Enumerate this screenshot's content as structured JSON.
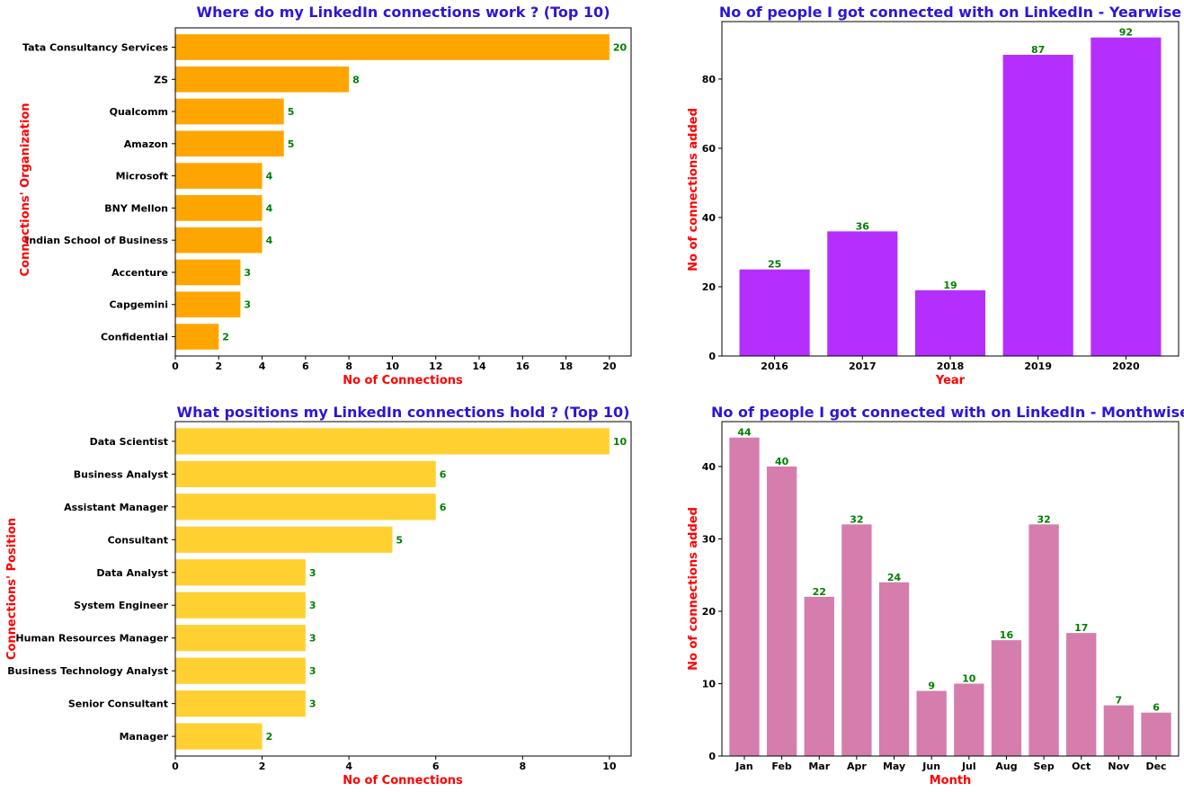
{
  "colors": {
    "title": "#2b16d8",
    "axis_label": "#ff0000",
    "data_label": "#008000"
  },
  "chart_data": [
    {
      "type": "bar",
      "orientation": "horizontal",
      "title": "Where do my LinkedIn connections work ? (Top 10)",
      "xlabel": "No of Connections",
      "ylabel": "Connections' Organization",
      "categories": [
        "Tata Consultancy Services",
        "ZS",
        "Qualcomm",
        "Amazon",
        "Microsoft",
        "BNY Mellon",
        "Indian School of Business",
        "Accenture",
        "Capgemini",
        "Confidential"
      ],
      "values": [
        20,
        8,
        5,
        5,
        4,
        4,
        4,
        3,
        3,
        2
      ],
      "xlim": [
        0,
        21
      ],
      "xticks": [
        "0",
        "2",
        "4",
        "6",
        "8",
        "10",
        "12",
        "14",
        "16",
        "18",
        "20"
      ],
      "bar_color": "#ffa500",
      "grid": false
    },
    {
      "type": "bar",
      "orientation": "vertical",
      "title": "No of people I got connected with on LinkedIn - Yearwise",
      "xlabel": "Year",
      "ylabel": "No of connections added",
      "categories": [
        "2016",
        "2017",
        "2018",
        "2019",
        "2020"
      ],
      "values": [
        25,
        36,
        19,
        87,
        92
      ],
      "ylim": [
        0,
        96.6
      ],
      "yticks": [
        "0",
        "20",
        "40",
        "60",
        "80"
      ],
      "bar_color": "#b42ffe",
      "grid": false
    },
    {
      "type": "bar",
      "orientation": "horizontal",
      "title": "What positions my LinkedIn connections hold ? (Top 10)",
      "xlabel": "No of Connections",
      "ylabel": "Connections' Position",
      "categories": [
        "Data Scientist",
        "Business Analyst",
        "Assistant Manager",
        "Consultant",
        "Data Analyst",
        "System Engineer",
        "Human Resources Manager",
        "Business Technology Analyst",
        "Senior Consultant",
        "Manager"
      ],
      "values": [
        10,
        6,
        6,
        5,
        3,
        3,
        3,
        3,
        3,
        2
      ],
      "xlim": [
        0,
        10.5
      ],
      "xticks": [
        "0",
        "2",
        "4",
        "6",
        "8",
        "10"
      ],
      "bar_color": "#ffd030",
      "grid": false
    },
    {
      "type": "bar",
      "orientation": "vertical",
      "title": "No of people I got connected with on LinkedIn - Monthwise",
      "xlabel": "Month",
      "ylabel": "No of connections added",
      "categories": [
        "Jan",
        "Feb",
        "Mar",
        "Apr",
        "May",
        "Jun",
        "Jul",
        "Aug",
        "Sep",
        "Oct",
        "Nov",
        "Dec"
      ],
      "values": [
        44,
        40,
        22,
        32,
        24,
        9,
        10,
        16,
        32,
        17,
        7,
        6
      ],
      "ylim": [
        0,
        46.2
      ],
      "yticks": [
        "0",
        "10",
        "20",
        "30",
        "40"
      ],
      "bar_color": "#d57dad",
      "grid": false
    }
  ]
}
